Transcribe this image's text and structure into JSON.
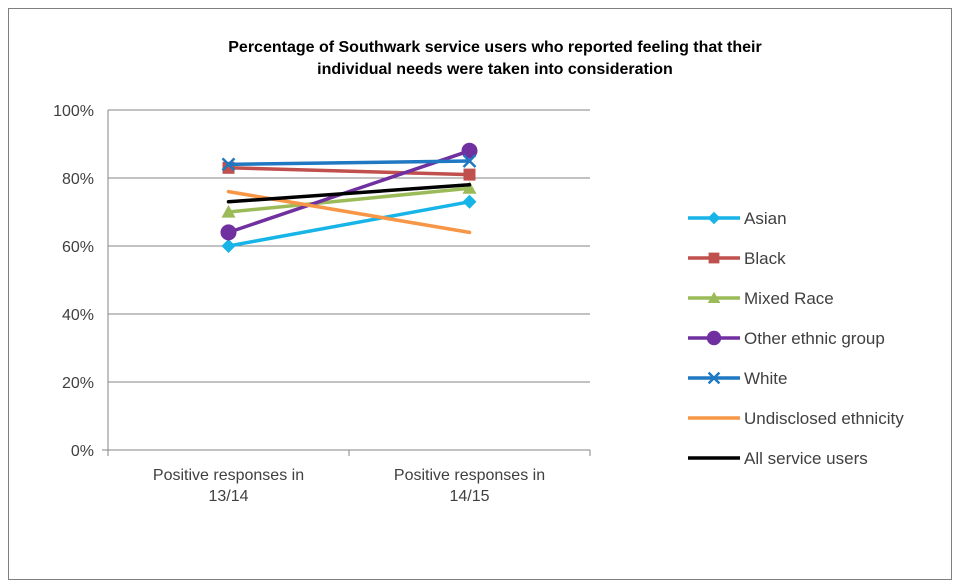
{
  "chart_data": {
    "type": "line",
    "title_lines": [
      "Percentage of Southwark service users who reported feeling that their",
      "individual  needs were taken into consideration"
    ],
    "categories": [
      [
        "Positive responses in",
        "13/14"
      ],
      [
        "Positive responses in",
        "14/15"
      ]
    ],
    "y_ticks": [
      "0%",
      "20%",
      "40%",
      "60%",
      "80%",
      "100%"
    ],
    "ylim": [
      0,
      100
    ],
    "grid": true,
    "legend_position": "right",
    "series": [
      {
        "name": "Asian",
        "values": [
          60,
          73
        ],
        "color": "#17b4e8",
        "marker": "diamond"
      },
      {
        "name": "Black",
        "values": [
          83,
          81
        ],
        "color": "#c0504d",
        "marker": "square"
      },
      {
        "name": "Mixed Race",
        "values": [
          70,
          77
        ],
        "color": "#9bbb59",
        "marker": "triangle"
      },
      {
        "name": "Other ethnic group",
        "values": [
          64,
          88
        ],
        "color": "#7030a0",
        "marker": "circle"
      },
      {
        "name": "White",
        "values": [
          84,
          85
        ],
        "color": "#1f78c1",
        "marker": "x"
      },
      {
        "name": "Undisclosed ethnicity",
        "values": [
          76,
          64
        ],
        "color": "#f79646",
        "marker": "none"
      },
      {
        "name": "All service users",
        "values": [
          73,
          78
        ],
        "color": "#000000",
        "marker": "none"
      }
    ]
  }
}
